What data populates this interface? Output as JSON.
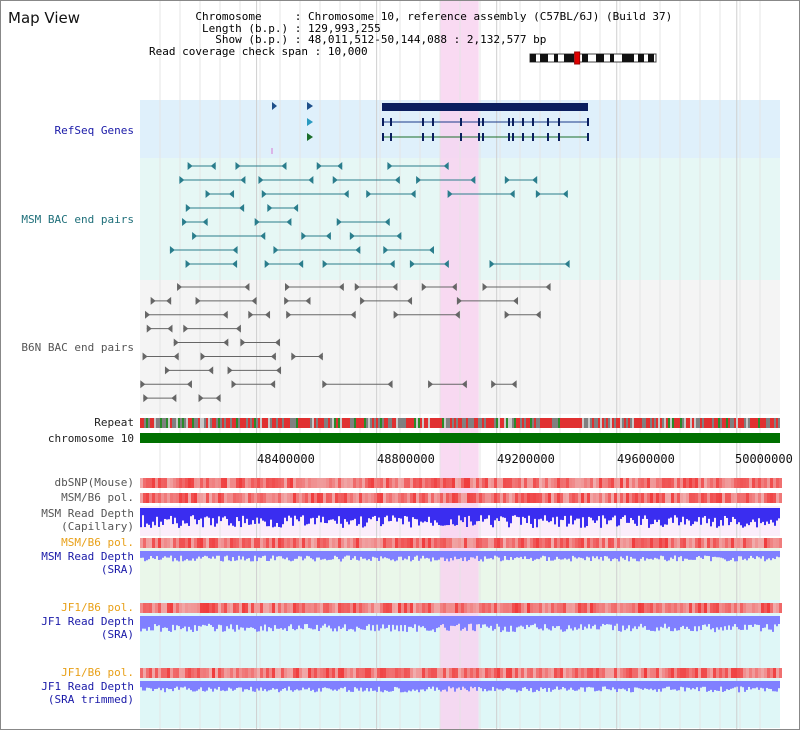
{
  "view_title": "Map View",
  "info": {
    "chromosome_key": "Chromosome",
    "chromosome_value": "Chromosome 10, reference assembly (C57BL/6J) (Build 37)",
    "length_key": "Length (b.p.)",
    "length_value": "129,993,255",
    "show_key": "Show (b.p.)",
    "show_value": "48,011,512-50,144,088 : 2,132,577 bp",
    "span_key": "Read coverage check span",
    "span_value": "10,000"
  },
  "tracks": {
    "refseq": "RefSeq Genes",
    "msm_bac": "MSM BAC end pairs",
    "b6n_bac": "B6N BAC end pairs",
    "repeat": "Repeat",
    "chromosome": "chromosome 10",
    "dbsnp": "dbSNP(Mouse)",
    "msm_b6_pol_1": "MSM/B6 pol.",
    "msm_read_cap": "MSM Read Depth\n(Capillary)",
    "msm_b6_pol_2": "MSM/B6 pol.",
    "msm_read_sra": "MSM Read Depth\n(SRA)",
    "jf1_b6_pol_1": "JF1/B6 pol.",
    "jf1_read_sra": "JF1 Read Depth\n(SRA)",
    "jf1_b6_pol_2": "JF1/B6 pol.",
    "jf1_read_trim": "JF1 Read Depth\n(SRA trimmed)"
  },
  "axis": {
    "start": 48011512,
    "end": 50144088,
    "ticks": [
      48400000,
      48800000,
      49200000,
      49600000,
      50000000
    ],
    "tick_labels": [
      "48400000",
      "48800000",
      "49200000",
      "49600000",
      "50000000"
    ]
  },
  "highlight": {
    "start_bp": 49010000,
    "end_bp": 49140000
  },
  "ideogram": {
    "marker_fraction": 0.37
  },
  "colors": {
    "refseq_bg": "#dff0fb",
    "msm_bg": "#e6f7f5",
    "b6n_bg": "#f4f4f4",
    "highlight": "#f8d4f0",
    "chromosome_bar": "#007000",
    "depth_blue": "#3a2df0",
    "depth_light": "#8080ff",
    "pol_red": "#ff5050",
    "sra_bg": "#eaf7ea",
    "jf1_bg": "#dff7f7"
  }
}
